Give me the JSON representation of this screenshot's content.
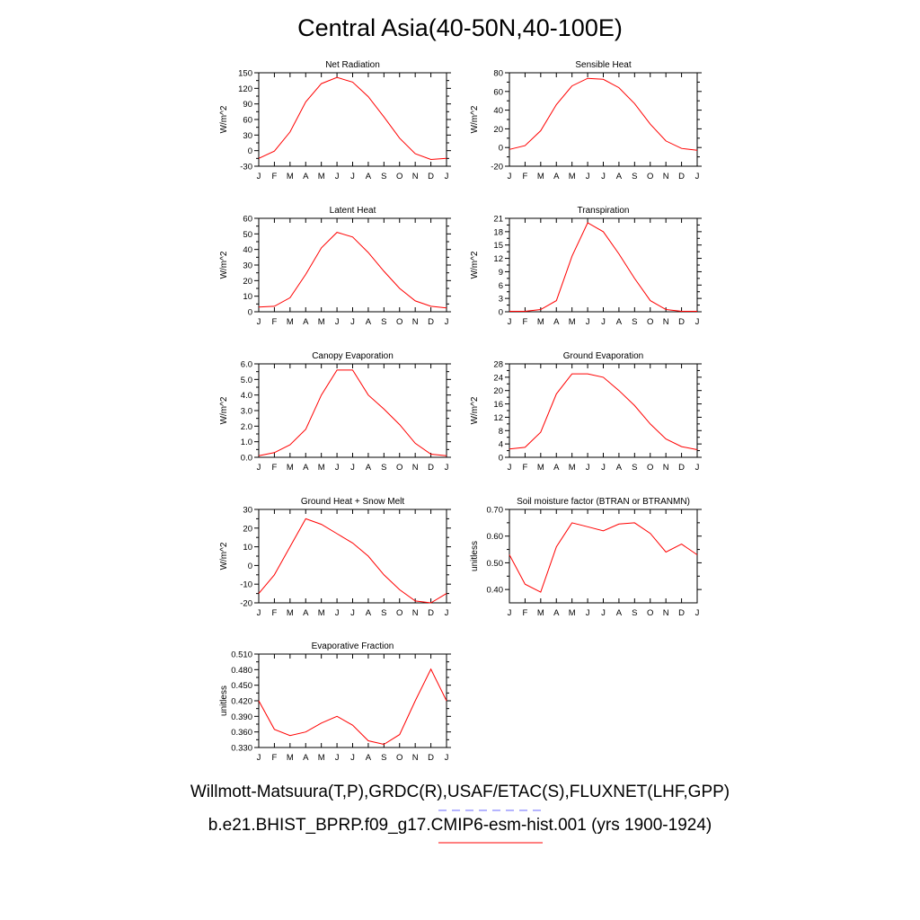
{
  "figure": {
    "title": "Central Asia(40-50N,40-100E)",
    "legend_line_1": "Willmott-Matsuura(T,P),GRDC(R),USAF/ETAC(S),FLUXNET(LHF,GPP)",
    "legend_line_2": "b.e21.BHIST_BPRP.f09_g17.CMIP6-esm-hist.001 (yrs 1900-1924)",
    "obs_line_color": "#6b6bff",
    "model_line_color": "#ff0000"
  },
  "chart_data": [
    {
      "type": "line",
      "title": "Net Radiation",
      "ylabel": "W/m^2",
      "x": [
        "J",
        "F",
        "M",
        "A",
        "M",
        "J",
        "J",
        "A",
        "S",
        "O",
        "N",
        "D",
        "J"
      ],
      "ylim": [
        -30,
        150
      ],
      "yticks": [
        "150",
        "120",
        "90",
        "60",
        "30",
        "0",
        "-30"
      ],
      "series": [
        {
          "color": "#ff0000",
          "values": [
            -15,
            -1,
            36,
            94,
            129,
            141,
            132,
            104,
            65,
            24,
            -6,
            -17,
            -15
          ]
        }
      ]
    },
    {
      "type": "line",
      "title": "Sensible Heat",
      "ylabel": "W/m^2",
      "x": [
        "J",
        "F",
        "M",
        "A",
        "M",
        "J",
        "J",
        "A",
        "S",
        "O",
        "N",
        "D",
        "J"
      ],
      "ylim": [
        -20,
        80
      ],
      "yticks": [
        "80",
        "60",
        "40",
        "20",
        "0",
        "-20"
      ],
      "series": [
        {
          "color": "#ff0000",
          "values": [
            -2,
            2,
            18,
            46,
            66,
            74,
            73,
            64,
            47,
            25,
            7,
            -1,
            -3
          ]
        }
      ]
    },
    {
      "type": "line",
      "title": "Latent Heat",
      "ylabel": "W/m^2",
      "x": [
        "J",
        "F",
        "M",
        "A",
        "M",
        "J",
        "J",
        "A",
        "S",
        "O",
        "N",
        "D",
        "J"
      ],
      "ylim": [
        0,
        60
      ],
      "yticks": [
        "60",
        "50",
        "40",
        "30",
        "20",
        "10",
        "0"
      ],
      "series": [
        {
          "color": "#ff0000",
          "values": [
            3,
            3.5,
            9,
            24,
            41,
            51,
            48,
            38,
            26,
            15,
            7,
            3.5,
            2.5
          ]
        }
      ]
    },
    {
      "type": "line",
      "title": "Transpiration",
      "ylabel": "W/m^2",
      "x": [
        "J",
        "F",
        "M",
        "A",
        "M",
        "J",
        "J",
        "A",
        "S",
        "O",
        "N",
        "D",
        "J"
      ],
      "ylim": [
        0,
        21
      ],
      "yticks": [
        "21",
        "18",
        "15",
        "12",
        "9",
        "6",
        "3",
        "0"
      ],
      "series": [
        {
          "color": "#ff0000",
          "values": [
            0.1,
            0.1,
            0.5,
            2.5,
            12.5,
            20,
            18,
            13,
            7.5,
            2.5,
            0.5,
            0.1,
            0.1
          ]
        }
      ]
    },
    {
      "type": "line",
      "title": "Canopy Evaporation",
      "ylabel": "W/m^2",
      "x": [
        "J",
        "F",
        "M",
        "A",
        "M",
        "J",
        "J",
        "A",
        "S",
        "O",
        "N",
        "D",
        "J"
      ],
      "ylim": [
        0,
        6
      ],
      "yticks": [
        "6.0",
        "5.0",
        "4.0",
        "3.0",
        "2.0",
        "1.0",
        "0.0"
      ],
      "series": [
        {
          "color": "#ff0000",
          "values": [
            0.1,
            0.3,
            0.8,
            1.8,
            4.0,
            5.6,
            5.6,
            4.0,
            3.1,
            2.1,
            0.9,
            0.2,
            0.1
          ]
        }
      ]
    },
    {
      "type": "line",
      "title": "Ground Evaporation",
      "ylabel": "W/m^2",
      "x": [
        "J",
        "F",
        "M",
        "A",
        "M",
        "J",
        "J",
        "A",
        "S",
        "O",
        "N",
        "D",
        "J"
      ],
      "ylim": [
        0,
        28
      ],
      "yticks": [
        "28",
        "24",
        "20",
        "16",
        "12",
        "8",
        "4",
        "0"
      ],
      "series": [
        {
          "color": "#ff0000",
          "values": [
            2.5,
            3,
            7.5,
            19,
            25,
            25,
            24,
            20,
            15.5,
            10,
            5.5,
            3.2,
            2.3
          ]
        }
      ]
    },
    {
      "type": "line",
      "title": "Ground Heat + Snow Melt",
      "ylabel": "W/m^2",
      "x": [
        "J",
        "F",
        "M",
        "A",
        "M",
        "J",
        "J",
        "A",
        "S",
        "O",
        "N",
        "D",
        "J"
      ],
      "ylim": [
        -20,
        30
      ],
      "yticks": [
        "30",
        "20",
        "10",
        "0",
        "-10",
        "-20"
      ],
      "series": [
        {
          "color": "#ff0000",
          "values": [
            -15,
            -5,
            10,
            25,
            22,
            17,
            12,
            5,
            -5,
            -13,
            -19,
            -20,
            -15
          ]
        }
      ]
    },
    {
      "type": "line",
      "title": "Soil moisture factor (BTRAN or BTRANMN)",
      "ylabel": "unitless",
      "x": [
        "J",
        "F",
        "M",
        "A",
        "M",
        "J",
        "J",
        "A",
        "S",
        "O",
        "N",
        "D",
        "J"
      ],
      "ylim": [
        0.35,
        0.7
      ],
      "yticks": [
        "0.70",
        "0.60",
        "0.50",
        "0.40"
      ],
      "series": [
        {
          "color": "#ff0000",
          "values": [
            0.53,
            0.42,
            0.39,
            0.56,
            0.65,
            0.635,
            0.62,
            0.645,
            0.65,
            0.61,
            0.54,
            0.57,
            0.53
          ]
        }
      ]
    },
    {
      "type": "line",
      "title": "Evaporative Fraction",
      "ylabel": "unitless",
      "x": [
        "J",
        "F",
        "M",
        "A",
        "M",
        "J",
        "J",
        "A",
        "S",
        "O",
        "N",
        "D",
        "J"
      ],
      "ylim": [
        0.33,
        0.51
      ],
      "yticks": [
        "0.510",
        "0.480",
        "0.450",
        "0.420",
        "0.390",
        "0.360",
        "0.330"
      ],
      "series": [
        {
          "color": "#ff0000",
          "values": [
            0.42,
            0.365,
            0.353,
            0.36,
            0.377,
            0.39,
            0.373,
            0.343,
            0.336,
            0.355,
            0.42,
            0.481,
            0.42
          ]
        }
      ]
    }
  ]
}
